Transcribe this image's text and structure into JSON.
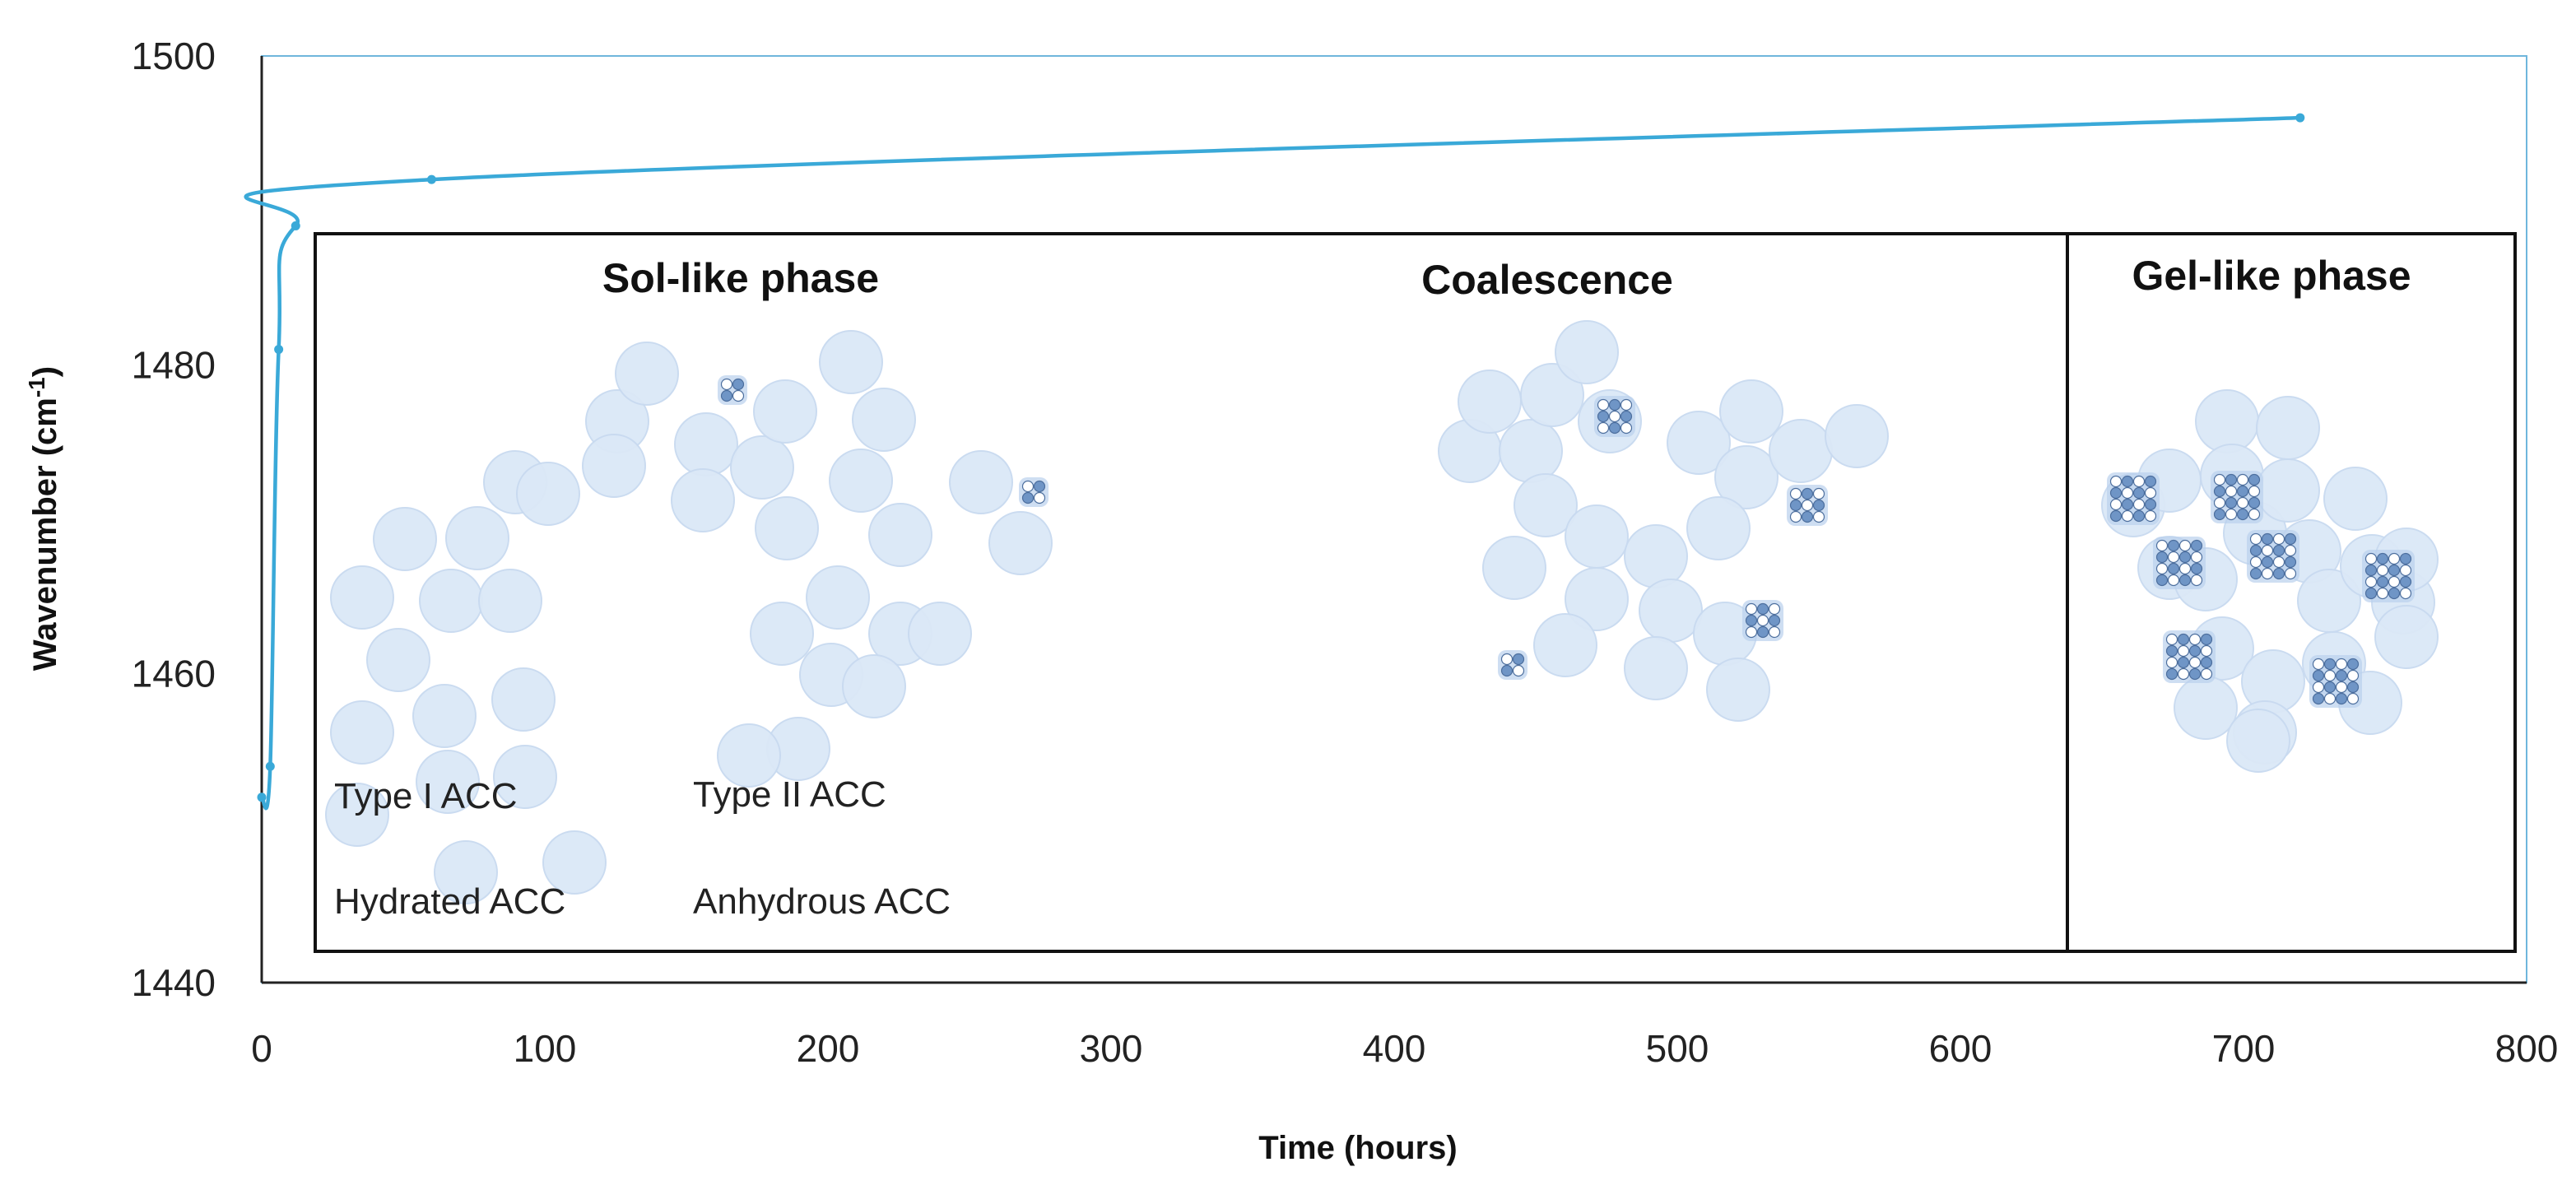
{
  "chart_data": {
    "type": "line",
    "title": "",
    "xlabel": "Time (hours)",
    "ylabel": "Wavenumber (cm-1)",
    "ylabel_main": "Wavenumber (cm",
    "ylabel_sup": "-1",
    "ylabel_end": ")",
    "xlim": [
      0,
      800
    ],
    "ylim": [
      1440,
      1500
    ],
    "x_ticks": [
      "0",
      "100",
      "200",
      "300",
      "400",
      "500",
      "600",
      "700",
      "800"
    ],
    "y_ticks": [
      "1440",
      "1460",
      "1480",
      "1500"
    ],
    "grid": false,
    "series": [
      {
        "name": "Wavenumber",
        "color": "#3aa9d8",
        "x": [
          0,
          3,
          6,
          12,
          60,
          720
        ],
        "y": [
          1452,
          1454,
          1481,
          1489,
          1492,
          1496
        ]
      }
    ],
    "panels": [
      {
        "title": "Sol-like phase",
        "labels": [
          "Type I ACC",
          "Type II ACC",
          "Hydrated ACC",
          "Anhydrous ACC"
        ]
      },
      {
        "title": "Coalescence"
      },
      {
        "title": "Gel-like phase"
      }
    ]
  },
  "colors": {
    "particle_fill": "#dbe8f7",
    "particle_stroke": "#c8daf0",
    "cluster_dark": "#6f95c6",
    "cluster_light": "#ffffff",
    "line": "#3aa9d8",
    "axis": "#222222"
  }
}
